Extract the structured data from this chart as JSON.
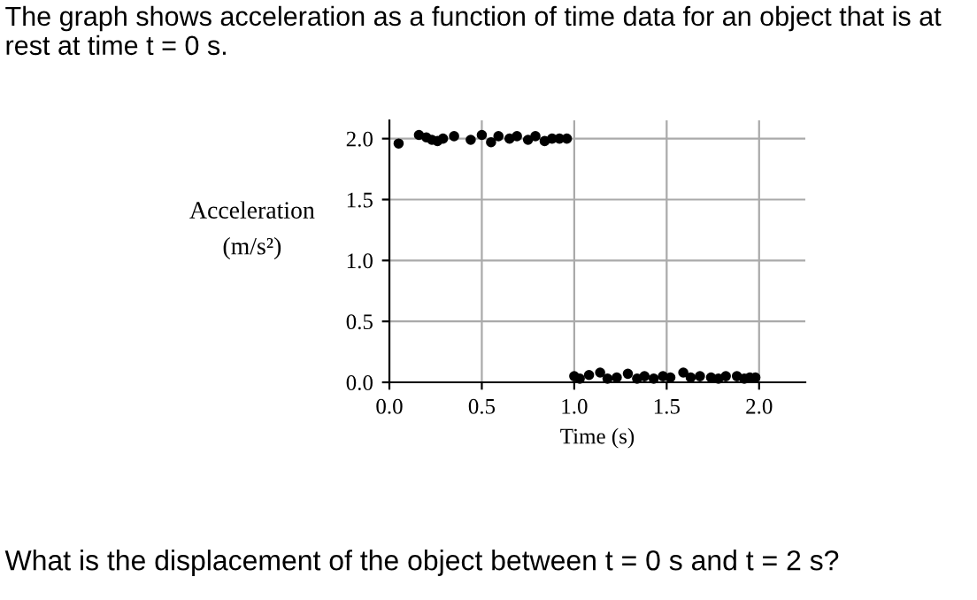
{
  "chart_data": {
    "type": "scatter",
    "title": "The graph shows acceleration as a function of time data for an object that is at rest at time t = 0 s.",
    "xlabel": "Time (s)",
    "ylabel": "Acceleration\n(m/s²)",
    "annotations": [
      "What is the displacement of the object between t = 0 s and t = 2 s?"
    ],
    "series": [
      {
        "color": "#000000",
        "x": [
          0.05,
          0.16,
          0.2,
          0.23,
          0.26,
          0.29,
          0.35,
          0.44,
          0.5,
          0.55,
          0.59,
          0.65,
          0.69,
          0.75,
          0.79,
          0.84,
          0.88,
          0.92,
          0.96,
          1.0,
          1.03,
          1.08,
          1.14,
          1.18,
          1.23,
          1.29,
          1.34,
          1.38,
          1.43,
          1.48,
          1.52,
          1.59,
          1.63,
          1.68,
          1.74,
          1.78,
          1.82,
          1.88,
          1.92,
          1.95,
          1.98
        ],
        "values": [
          1.96,
          2.03,
          2.01,
          1.99,
          1.98,
          2.0,
          2.02,
          1.99,
          2.03,
          1.97,
          2.02,
          2.0,
          2.02,
          1.99,
          2.02,
          1.98,
          2.0,
          2.0,
          2.0,
          0.05,
          0.03,
          0.06,
          0.08,
          0.03,
          0.04,
          0.07,
          0.03,
          0.05,
          0.03,
          0.05,
          0.04,
          0.08,
          0.04,
          0.05,
          0.04,
          0.03,
          0.05,
          0.05,
          0.03,
          0.04,
          0.04
        ]
      }
    ],
    "xlim": [
      0,
      2.25
    ],
    "ylim": [
      0,
      2.15
    ],
    "xticks": [
      {
        "value": 0,
        "label": "0.0"
      },
      0.5,
      {
        "value": 1,
        "label": "1.0"
      },
      1.5,
      {
        "value": 2,
        "label": "2.0"
      }
    ],
    "yticks": [
      {
        "value": 0,
        "label": "0.0"
      },
      0.5,
      {
        "value": 1,
        "label": "1.0"
      },
      1.5,
      {
        "value": 2,
        "label": "2.0"
      }
    ],
    "grid": true,
    "marker": "circle"
  }
}
